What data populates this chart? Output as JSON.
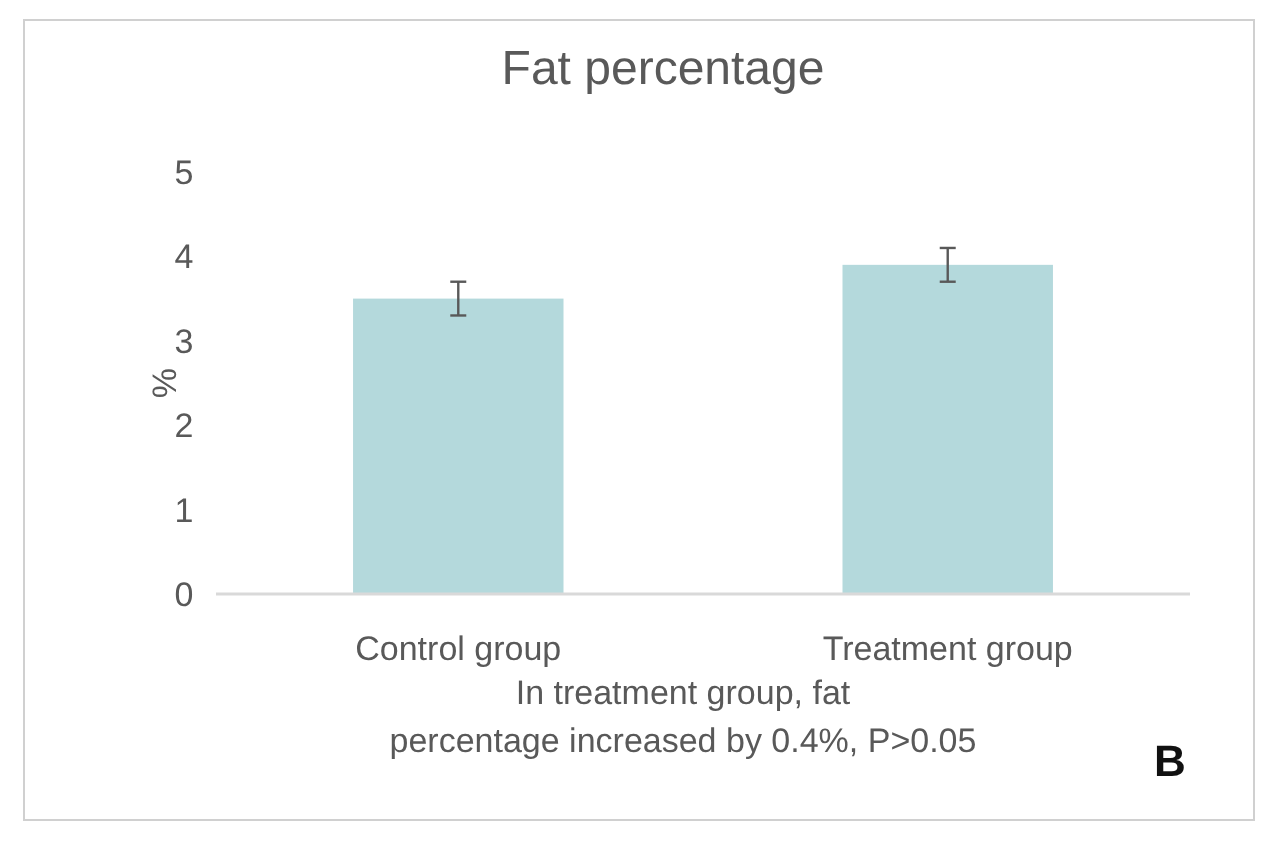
{
  "chart_data": {
    "type": "bar",
    "title": "Fat percentage",
    "ylabel": "%",
    "categories": [
      "Control group",
      "Treatment group"
    ],
    "values": [
      3.5,
      3.9
    ],
    "errors": [
      0.2,
      0.2
    ],
    "color": "#b4d9dc",
    "ylim": [
      0,
      5
    ],
    "yticks": [
      0,
      1,
      2,
      3,
      4,
      5
    ],
    "grid": false,
    "annotations": [
      "In treatment group, fat percentage increased by 0.4%, P>0.05",
      "B"
    ]
  }
}
